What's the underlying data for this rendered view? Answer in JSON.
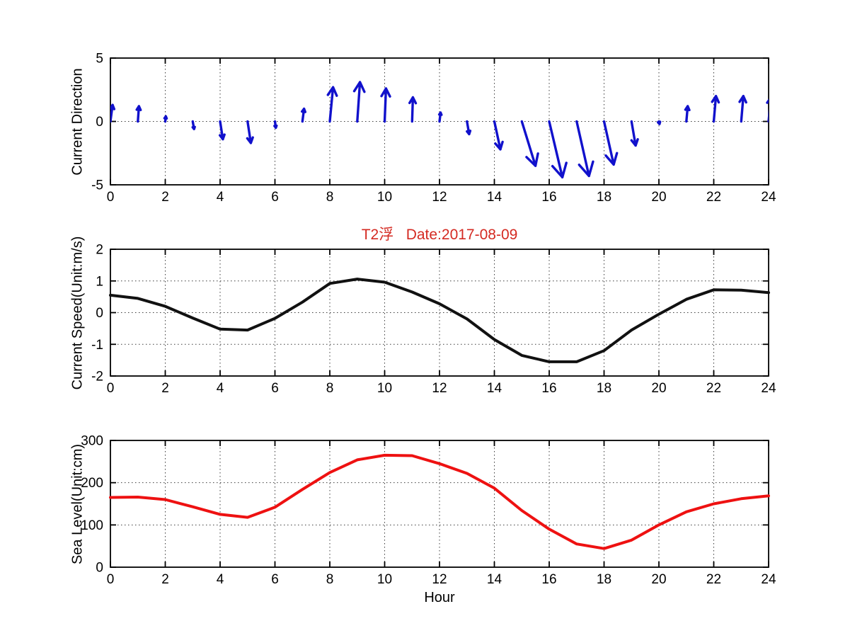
{
  "figure": {
    "title": "T2浮   Date:2017-08-09",
    "title_color": "#d42a22",
    "xlabel": "Hour",
    "background": "#ffffff"
  },
  "chart_data": [
    {
      "type": "quiver",
      "name": "current-direction",
      "ylabel": "Current Direction",
      "xlim": [
        0,
        24
      ],
      "ylim": [
        -5,
        5
      ],
      "xticks": [
        0,
        2,
        4,
        6,
        8,
        10,
        12,
        14,
        16,
        18,
        20,
        22,
        24
      ],
      "yticks": [
        5,
        0,
        -5
      ],
      "grid": "dotted",
      "color": "#1111cc",
      "x": [
        0,
        1,
        2,
        3,
        4,
        5,
        6,
        7,
        8,
        9,
        10,
        11,
        12,
        13,
        14,
        15,
        16,
        17,
        18,
        19,
        20,
        21,
        22,
        23,
        24
      ],
      "u": [
        0.08,
        0.04,
        0.02,
        0.05,
        0.1,
        0.12,
        0.03,
        0.06,
        0.12,
        0.1,
        0.05,
        0.03,
        0.04,
        0.08,
        0.22,
        0.5,
        0.48,
        0.45,
        0.35,
        0.15,
        0.02,
        0.05,
        0.08,
        0.08,
        0.08
      ],
      "v": [
        1.3,
        1.2,
        0.4,
        -0.6,
        -1.4,
        -1.7,
        -0.5,
        1.0,
        2.7,
        3.1,
        2.6,
        1.9,
        0.7,
        -1.0,
        -2.2,
        -3.5,
        -4.4,
        -4.3,
        -3.4,
        -1.9,
        -0.2,
        1.2,
        2.0,
        2.0,
        1.9
      ]
    },
    {
      "type": "line",
      "name": "current-speed",
      "ylabel": "Current Speed(Unit:m/s)",
      "xlim": [
        0,
        24
      ],
      "ylim": [
        -2,
        2
      ],
      "xticks": [
        0,
        2,
        4,
        6,
        8,
        10,
        12,
        14,
        16,
        18,
        20,
        22,
        24
      ],
      "yticks": [
        2,
        1,
        0,
        -1,
        -2
      ],
      "grid": "dotted",
      "color": "#111111",
      "x": [
        0,
        1,
        2,
        3,
        4,
        5,
        6,
        7,
        8,
        9,
        10,
        11,
        12,
        13,
        14,
        15,
        16,
        17,
        18,
        19,
        20,
        21,
        22,
        23,
        24
      ],
      "values": [
        0.55,
        0.45,
        0.2,
        -0.17,
        -0.52,
        -0.55,
        -0.18,
        0.33,
        0.92,
        1.06,
        0.96,
        0.65,
        0.28,
        -0.2,
        -0.85,
        -1.35,
        -1.55,
        -1.55,
        -1.2,
        -0.55,
        -0.05,
        0.42,
        0.72,
        0.71,
        0.63
      ]
    },
    {
      "type": "line",
      "name": "sea-level",
      "ylabel": "Sea Level(Unit:cm)",
      "xlim": [
        0,
        24
      ],
      "ylim": [
        0,
        300
      ],
      "xticks": [
        0,
        2,
        4,
        6,
        8,
        10,
        12,
        14,
        16,
        18,
        20,
        22,
        24
      ],
      "yticks": [
        300,
        200,
        100,
        0
      ],
      "grid": "dotted",
      "color": "#ee1111",
      "x": [
        0,
        1,
        2,
        3,
        4,
        5,
        6,
        7,
        8,
        9,
        10,
        11,
        12,
        13,
        14,
        15,
        16,
        17,
        18,
        19,
        20,
        21,
        22,
        23,
        24
      ],
      "values": [
        165,
        166,
        160,
        143,
        125,
        118,
        142,
        184,
        224,
        254,
        265,
        264,
        245,
        222,
        187,
        134,
        90,
        55,
        44,
        64,
        100,
        131,
        150,
        162,
        169
      ]
    }
  ]
}
